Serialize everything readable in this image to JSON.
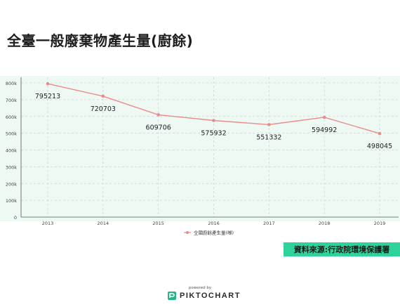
{
  "page": {
    "title": "全臺一般廢棄物產生量(廚餘)",
    "source_label": "資料來源:行政院環境保護署",
    "powered_by": "powered by",
    "brand_name": "PIKTOCHART",
    "brand_icon": "piktochart-logo-icon"
  },
  "chart_data": {
    "type": "line",
    "title": "全臺一般廢棄物產生量(廚餘)",
    "x": [
      "2013",
      "2014",
      "2015",
      "2016",
      "2017",
      "2018",
      "2019"
    ],
    "series": [
      {
        "name": "全國廚餘產生量(噸)",
        "values": [
          795213,
          720703,
          609706,
          575932,
          551332,
          594992,
          498045
        ]
      }
    ],
    "ylim": [
      0,
      800000
    ],
    "yticks": [
      0,
      100000,
      200000,
      300000,
      400000,
      500000,
      600000,
      700000,
      800000
    ],
    "ytick_labels": [
      "0",
      "100k",
      "200k",
      "300k",
      "400k",
      "500k",
      "600k",
      "700k",
      "800k"
    ],
    "grid": true,
    "legend": "bottom-center",
    "colors": {
      "line": "#e98b8b",
      "grid": "#c9d6d0",
      "background": "#eef9f4"
    }
  }
}
